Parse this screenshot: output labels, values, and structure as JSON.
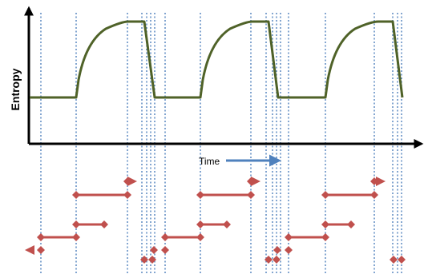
{
  "labels": {
    "y_axis": "Entropy",
    "x_axis": "Time"
  },
  "colors": {
    "background": "#ffffff",
    "axis": "#000000",
    "entropy_curve": "#4f6228",
    "guide_lines": "#4f81bd",
    "time_arrow": "#4f81bd",
    "events": "#c0504d"
  },
  "entropy_profile": {
    "cycles": 3,
    "baseline_level": "low",
    "peak_level": "high",
    "shape": "baseline, sharp rise, concave saturation, plateau, sharp drop"
  }
}
